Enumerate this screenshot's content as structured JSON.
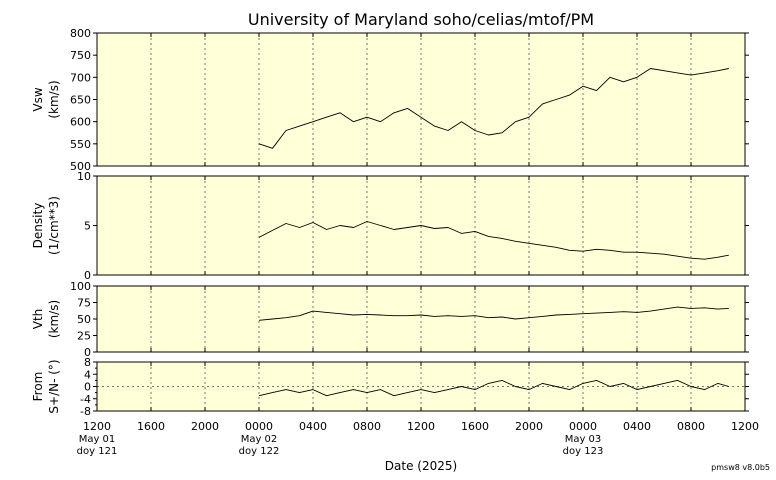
{
  "title": "University of Maryland  soho/celias/mtof/PM",
  "version": "pmsw8 v8.0b5",
  "colors": {
    "panel_bg": "#ffffd8",
    "line": "#000000",
    "grid": "#777777"
  },
  "x_axis": {
    "xlabel": "Date (2025)",
    "range_hours": [
      0,
      48
    ],
    "tick_labels": [
      "1200",
      "1600",
      "2000",
      "0000",
      "0400",
      "0800",
      "1200",
      "1600",
      "2000",
      "0000",
      "0400",
      "0800",
      "1200"
    ],
    "date_labels": [
      {
        "tick": 0,
        "line1": "May 01",
        "line2": "doy 121"
      },
      {
        "tick": 3,
        "line1": "May 02",
        "line2": "doy 122"
      },
      {
        "tick": 9,
        "line1": "May 03",
        "line2": "doy 123"
      }
    ]
  },
  "chart_data": [
    {
      "type": "line",
      "ylabel": "Vsw",
      "yunit": "(km/s)",
      "ylim": [
        500,
        800
      ],
      "yticks": [
        500,
        550,
        600,
        650,
        700,
        750,
        800
      ],
      "ytick_labels": [
        "500",
        "550",
        "600",
        "650",
        "700",
        "750",
        "800"
      ],
      "zero_line": false,
      "x": [
        12.0,
        13.0,
        14.0,
        15.0,
        16.0,
        17.0,
        18.0,
        19.0,
        20.0,
        21.0,
        22.0,
        23.0,
        24.0,
        25.0,
        26.0,
        27.0,
        28.0,
        29.0,
        30.0,
        31.0,
        32.0,
        33.0,
        34.0,
        35.0,
        36.0,
        37.0,
        38.0,
        39.0,
        40.0,
        41.0,
        42.0,
        43.0,
        44.0,
        45.0,
        46.0,
        46.8
      ],
      "y": [
        550,
        540,
        580,
        590,
        600,
        610,
        620,
        600,
        610,
        600,
        620,
        630,
        610,
        590,
        580,
        600,
        580,
        570,
        575,
        600,
        610,
        640,
        650,
        660,
        680,
        670,
        700,
        690,
        700,
        720,
        715,
        710,
        705,
        710,
        715,
        720
      ]
    },
    {
      "type": "line",
      "ylabel": "Density",
      "yunit": "(1/cm**3)",
      "ylim": [
        0,
        10
      ],
      "yticks": [
        0,
        5,
        10
      ],
      "ytick_labels": [
        "0",
        "5",
        "10"
      ],
      "zero_line": false,
      "x": [
        12.0,
        13.0,
        14.0,
        15.0,
        16.0,
        17.0,
        18.0,
        19.0,
        20.0,
        21.0,
        22.0,
        23.0,
        24.0,
        25.0,
        26.0,
        27.0,
        28.0,
        29.0,
        30.0,
        31.0,
        32.0,
        33.0,
        34.0,
        35.0,
        36.0,
        37.0,
        38.0,
        39.0,
        40.0,
        41.0,
        42.0,
        43.0,
        44.0,
        45.0,
        46.0,
        46.8
      ],
      "y": [
        3.8,
        4.5,
        5.2,
        4.8,
        5.3,
        4.6,
        5.0,
        4.8,
        5.4,
        5.0,
        4.6,
        4.8,
        5.0,
        4.7,
        4.8,
        4.2,
        4.4,
        3.9,
        3.7,
        3.4,
        3.2,
        3.0,
        2.8,
        2.5,
        2.4,
        2.6,
        2.5,
        2.3,
        2.3,
        2.2,
        2.1,
        1.9,
        1.7,
        1.6,
        1.8,
        2.0
      ]
    },
    {
      "type": "line",
      "ylabel": "Vth",
      "yunit": "(km/s)",
      "ylim": [
        0,
        100
      ],
      "yticks": [
        0,
        25,
        50,
        75,
        100
      ],
      "ytick_labels": [
        "0",
        "25",
        "50",
        "75",
        "100"
      ],
      "zero_line": false,
      "x": [
        12.0,
        13.0,
        14.0,
        15.0,
        16.0,
        17.0,
        18.0,
        19.0,
        20.0,
        21.0,
        22.0,
        23.0,
        24.0,
        25.0,
        26.0,
        27.0,
        28.0,
        29.0,
        30.0,
        31.0,
        32.0,
        33.0,
        34.0,
        35.0,
        36.0,
        37.0,
        38.0,
        39.0,
        40.0,
        41.0,
        42.0,
        43.0,
        44.0,
        45.0,
        46.0,
        46.8
      ],
      "y": [
        48,
        50,
        52,
        55,
        62,
        60,
        58,
        56,
        57,
        56,
        55,
        55,
        56,
        54,
        55,
        54,
        55,
        52,
        53,
        50,
        52,
        54,
        56,
        57,
        58,
        59,
        60,
        61,
        60,
        62,
        65,
        68,
        66,
        67,
        65,
        66
      ]
    },
    {
      "type": "line",
      "ylabel": "From",
      "yunit": "S+/N- (°)",
      "ylim": [
        -8,
        8
      ],
      "yticks": [
        -8,
        -4,
        0,
        4,
        8
      ],
      "ytick_labels": [
        "-8",
        "-4",
        "0",
        "4",
        "8"
      ],
      "minor_yticks": [
        -6,
        -2,
        2,
        6
      ],
      "zero_line": true,
      "x": [
        12.0,
        13.0,
        14.0,
        15.0,
        16.0,
        17.0,
        18.0,
        19.0,
        20.0,
        21.0,
        22.0,
        23.0,
        24.0,
        25.0,
        26.0,
        27.0,
        28.0,
        29.0,
        30.0,
        31.0,
        32.0,
        33.0,
        34.0,
        35.0,
        36.0,
        37.0,
        38.0,
        39.0,
        40.0,
        41.0,
        42.0,
        43.0,
        44.0,
        45.0,
        46.0,
        46.8
      ],
      "y": [
        -3,
        -2,
        -1,
        -2,
        -1,
        -3,
        -2,
        -1,
        -2,
        -1,
        -3,
        -2,
        -1,
        -2,
        -1,
        0,
        -1,
        1,
        2,
        0,
        -1,
        1,
        0,
        -1,
        1,
        2,
        0,
        1,
        -1,
        0,
        1,
        2,
        0,
        -1,
        1,
        0
      ]
    }
  ]
}
